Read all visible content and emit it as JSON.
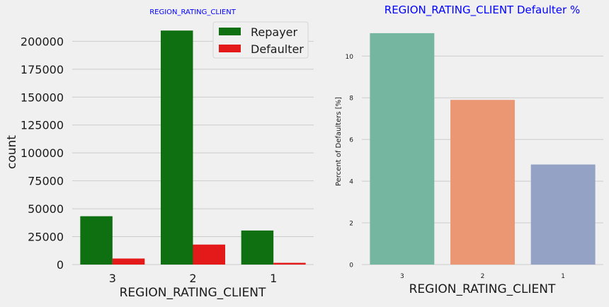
{
  "chart_data": [
    {
      "type": "bar",
      "title": "REGION_RATING_CLIENT",
      "title_color": "#0000ff",
      "xlabel": "REGION_RATING_CLIENT",
      "ylabel": "count",
      "categories": [
        "3",
        "2",
        "1"
      ],
      "series": [
        {
          "name": "Repayer",
          "color": "#0e7010",
          "values": [
            43300,
            209600,
            30500
          ]
        },
        {
          "name": "Defaulter",
          "color": "#e41a1a",
          "values": [
            5400,
            17900,
            1550
          ]
        }
      ],
      "ylim": [
        0,
        211000
      ],
      "yticks": [
        0,
        25000,
        50000,
        75000,
        100000,
        125000,
        150000,
        175000,
        200000
      ],
      "legend_position": "top-right",
      "grid": "y"
    },
    {
      "type": "bar",
      "title": "REGION_RATING_CLIENT Defaulter %",
      "title_color": "#0000ff",
      "xlabel": "REGION_RATING_CLIENT",
      "ylabel": "Percent of Defaulters [%]",
      "categories": [
        "3",
        "2",
        "1"
      ],
      "values": [
        11.1,
        7.9,
        4.8
      ],
      "colors": [
        "#74b6a0",
        "#eb9774",
        "#94a3c5"
      ],
      "ylim": [
        0,
        11.3
      ],
      "yticks": [
        0,
        2,
        4,
        6,
        8,
        10
      ],
      "grid": "y"
    }
  ]
}
